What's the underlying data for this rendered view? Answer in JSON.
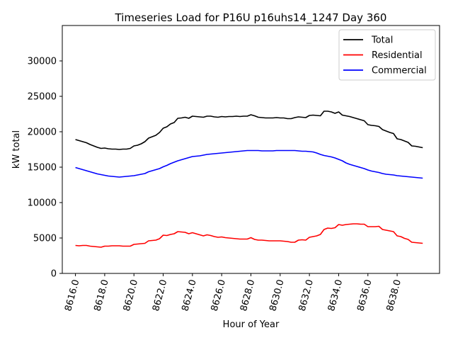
{
  "chart_data": {
    "type": "line",
    "title": "Timeseries Load for P16U p16uhs14_1247  Day 360",
    "xlabel": "Hour of Year",
    "ylabel": "kW total",
    "xlim": [
      8615.1,
      8640.9
    ],
    "ylim": [
      0,
      35000
    ],
    "xticks": [
      8616,
      8618,
      8620,
      8622,
      8624,
      8626,
      8628,
      8630,
      8632,
      8634,
      8636,
      8638
    ],
    "xtick_labels": [
      "8616.0",
      "8618.0",
      "8620.0",
      "8622.0",
      "8624.0",
      "8626.0",
      "8628.0",
      "8630.0",
      "8632.0",
      "8634.0",
      "8636.0",
      "8638.0"
    ],
    "yticks": [
      0,
      5000,
      10000,
      15000,
      20000,
      25000,
      30000
    ],
    "ytick_labels": [
      "0",
      "5000",
      "10000",
      "15000",
      "20000",
      "25000",
      "30000"
    ],
    "legend_position": "top-right",
    "x": [
      8616.0,
      8616.25,
      8616.5,
      8616.75,
      8617.0,
      8617.25,
      8617.5,
      8617.75,
      8618.0,
      8618.25,
      8618.5,
      8618.75,
      8619.0,
      8619.25,
      8619.5,
      8619.75,
      8620.0,
      8620.25,
      8620.5,
      8620.75,
      8621.0,
      8621.25,
      8621.5,
      8621.75,
      8622.0,
      8622.25,
      8622.5,
      8622.75,
      8623.0,
      8623.25,
      8623.5,
      8623.75,
      8624.0,
      8624.25,
      8624.5,
      8624.75,
      8625.0,
      8625.25,
      8625.5,
      8625.75,
      8626.0,
      8626.25,
      8626.5,
      8626.75,
      8627.0,
      8627.25,
      8627.5,
      8627.75,
      8628.0,
      8628.25,
      8628.5,
      8628.75,
      8629.0,
      8629.25,
      8629.5,
      8629.75,
      8630.0,
      8630.25,
      8630.5,
      8630.75,
      8631.0,
      8631.25,
      8631.5,
      8631.75,
      8632.0,
      8632.25,
      8632.5,
      8632.75,
      8633.0,
      8633.25,
      8633.5,
      8633.75,
      8634.0,
      8634.25,
      8634.5,
      8634.75,
      8635.0,
      8635.25,
      8635.5,
      8635.75,
      8636.0,
      8636.25,
      8636.5,
      8636.75,
      8637.0,
      8637.25,
      8637.5,
      8637.75,
      8638.0,
      8638.25,
      8638.5,
      8638.75,
      8639.0,
      8639.25,
      8639.5,
      8639.75
    ],
    "series": [
      {
        "name": "Total",
        "color": "#000000",
        "values": [
          18900,
          18750,
          18600,
          18450,
          18200,
          18000,
          17800,
          17650,
          17700,
          17600,
          17550,
          17550,
          17500,
          17550,
          17550,
          17650,
          18000,
          18100,
          18300,
          18600,
          19100,
          19300,
          19500,
          19900,
          20500,
          20700,
          21100,
          21300,
          21900,
          21950,
          22050,
          21900,
          22200,
          22150,
          22100,
          22050,
          22200,
          22200,
          22100,
          22050,
          22150,
          22100,
          22150,
          22150,
          22200,
          22150,
          22200,
          22200,
          22400,
          22250,
          22050,
          22000,
          21950,
          21950,
          21950,
          22000,
          21950,
          21950,
          21850,
          21850,
          22000,
          22100,
          22050,
          22000,
          22300,
          22350,
          22300,
          22250,
          22900,
          22900,
          22800,
          22600,
          22800,
          22350,
          22250,
          22150,
          22000,
          21850,
          21700,
          21550,
          21000,
          20900,
          20850,
          20750,
          20300,
          20100,
          19900,
          19750,
          19000,
          18900,
          18700,
          18500,
          18000,
          17950,
          17850,
          17750
        ]
      },
      {
        "name": "Residential",
        "color": "#ff0000",
        "values": [
          3950,
          3900,
          3950,
          3950,
          3850,
          3800,
          3750,
          3700,
          3850,
          3850,
          3900,
          3900,
          3900,
          3850,
          3850,
          3850,
          4100,
          4150,
          4200,
          4250,
          4600,
          4650,
          4700,
          4900,
          5400,
          5350,
          5500,
          5600,
          5900,
          5850,
          5800,
          5600,
          5750,
          5600,
          5450,
          5300,
          5450,
          5350,
          5200,
          5100,
          5150,
          5050,
          5000,
          4950,
          4900,
          4850,
          4850,
          4850,
          5050,
          4800,
          4700,
          4700,
          4650,
          4600,
          4600,
          4600,
          4600,
          4550,
          4500,
          4400,
          4400,
          4700,
          4750,
          4700,
          5100,
          5200,
          5300,
          5500,
          6200,
          6400,
          6350,
          6450,
          6900,
          6800,
          6900,
          6950,
          7000,
          7000,
          6950,
          6950,
          6600,
          6600,
          6600,
          6650,
          6200,
          6100,
          6000,
          5900,
          5300,
          5200,
          4950,
          4800,
          4400,
          4350,
          4300,
          4250
        ]
      },
      {
        "name": "Commercial",
        "color": "#0000ff",
        "values": [
          14950,
          14800,
          14650,
          14500,
          14350,
          14200,
          14050,
          13950,
          13850,
          13750,
          13700,
          13650,
          13600,
          13650,
          13700,
          13750,
          13800,
          13900,
          14000,
          14100,
          14350,
          14500,
          14650,
          14800,
          15050,
          15250,
          15500,
          15700,
          15900,
          16050,
          16200,
          16350,
          16500,
          16550,
          16600,
          16700,
          16800,
          16850,
          16900,
          16950,
          17000,
          17050,
          17100,
          17150,
          17200,
          17250,
          17300,
          17350,
          17350,
          17350,
          17350,
          17300,
          17300,
          17300,
          17300,
          17350,
          17350,
          17350,
          17350,
          17350,
          17350,
          17300,
          17250,
          17250,
          17200,
          17150,
          17000,
          16800,
          16650,
          16550,
          16450,
          16300,
          16100,
          15900,
          15600,
          15400,
          15250,
          15100,
          14950,
          14800,
          14600,
          14450,
          14350,
          14250,
          14100,
          14000,
          13950,
          13900,
          13800,
          13750,
          13700,
          13650,
          13600,
          13550,
          13500,
          13450
        ]
      }
    ]
  }
}
